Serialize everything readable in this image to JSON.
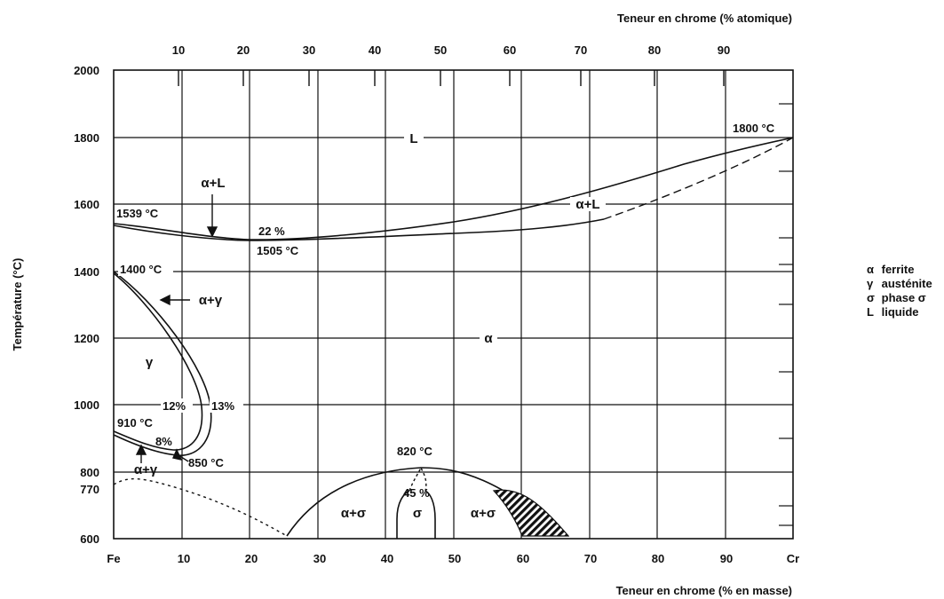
{
  "axes": {
    "top_title": "Teneur en chrome (% atomique)",
    "bottom_title": "Teneur en chrome (% en masse)",
    "y_title": "Température (°C)",
    "bottom_ticks": [
      "Fe",
      "10",
      "20",
      "30",
      "40",
      "50",
      "60",
      "70",
      "80",
      "90",
      "Cr"
    ],
    "top_ticks": [
      "10",
      "20",
      "30",
      "40",
      "50",
      "60",
      "70",
      "80",
      "90"
    ],
    "y_ticks": [
      "2000",
      "1800",
      "1600",
      "1400",
      "1200",
      "1000",
      "800",
      "770",
      "600"
    ],
    "x_range": [
      0,
      100
    ],
    "y_range": [
      600,
      2000
    ]
  },
  "phases": {
    "L": "L",
    "aL": "α+L",
    "aL2": "α+L",
    "ag": "α+γ",
    "ag2": "α+γ",
    "g": "γ",
    "a": "α",
    "as1": "α+σ",
    "s": "σ",
    "as2": "α+σ"
  },
  "annotations": {
    "t1539": "1539 °C",
    "p22": "22 %",
    "t1505": "1505 °C",
    "t1800": "1800 °C",
    "t1400": "1400 °C",
    "p12": "12%",
    "p13": "13%",
    "t910": "910 °C",
    "p8": "8%",
    "t850": "850 °C",
    "t820": "820 °C",
    "p45": "45 %"
  },
  "legend": [
    {
      "symbol": "α",
      "text": "ferrite"
    },
    {
      "symbol": "γ",
      "text": "austénite"
    },
    {
      "symbol": "σ",
      "text": "phase σ"
    },
    {
      "symbol": "L",
      "text": "liquide"
    }
  ]
}
